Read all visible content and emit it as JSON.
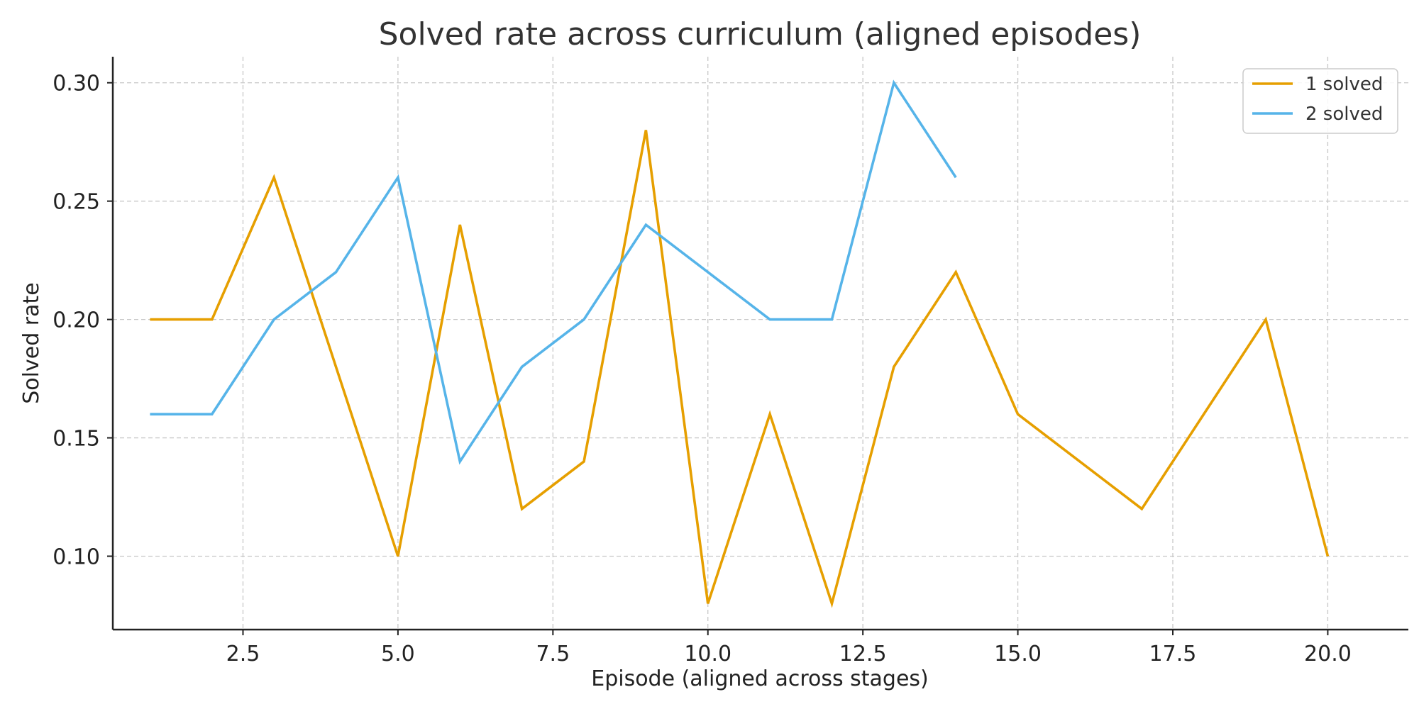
{
  "chart_data": {
    "type": "line",
    "title": "Solved rate across curriculum (aligned episodes)",
    "xlabel": "Episode (aligned across stages)",
    "ylabel": "Solved rate",
    "xlim": [
      0.4,
      21.3
    ],
    "ylim": [
      0.069,
      0.311
    ],
    "xticks": [
      "2.5",
      "5.0",
      "7.5",
      "10.0",
      "12.5",
      "15.0",
      "17.5",
      "20.0"
    ],
    "yticks": [
      "0.10",
      "0.15",
      "0.20",
      "0.25",
      "0.30"
    ],
    "grid": true,
    "legend_position": "top-right",
    "series": [
      {
        "name": "1 solved",
        "color": "#E69F00",
        "x": [
          1,
          2,
          3,
          4,
          5,
          6,
          7,
          8,
          9,
          10,
          11,
          12,
          13,
          14,
          15,
          16,
          17,
          18,
          19,
          20
        ],
        "y": [
          0.2,
          0.2,
          0.26,
          0.18,
          0.1,
          0.24,
          0.12,
          0.14,
          0.28,
          0.08,
          0.16,
          0.08,
          0.18,
          0.22,
          0.16,
          0.14,
          0.12,
          0.16,
          0.2,
          0.1
        ]
      },
      {
        "name": "2 solved",
        "color": "#56B4E9",
        "x": [
          1,
          2,
          3,
          4,
          5,
          6,
          7,
          8,
          9,
          10,
          11,
          12,
          13,
          14
        ],
        "y": [
          0.16,
          0.16,
          0.2,
          0.22,
          0.26,
          0.14,
          0.18,
          0.2,
          0.24,
          0.22,
          0.2,
          0.2,
          0.3,
          0.26
        ]
      }
    ]
  }
}
